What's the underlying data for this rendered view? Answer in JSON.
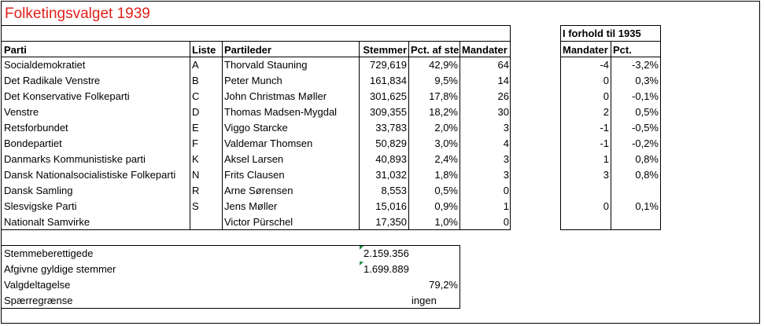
{
  "title": "Folketingsvalget 1939",
  "headers": {
    "parti": "Parti",
    "liste": "Liste",
    "partileder": "Partileder",
    "stemmer": "Stemmer",
    "pct": "Pct. af ste",
    "mandater": "Mandater"
  },
  "side_header": {
    "title": "I forhold til 1935",
    "mandater": "Mandater",
    "pct": "Pct."
  },
  "rows": [
    {
      "parti": "Socialdemokratiet",
      "liste": "A",
      "leder": "Thorvald Stauning",
      "stemmer": "729,619",
      "pct": "42,9%",
      "mandater": "64",
      "d_mandater": "-4",
      "d_pct": "-3,2%"
    },
    {
      "parti": "Det Radikale Venstre",
      "liste": "B",
      "leder": "Peter Munch",
      "stemmer": "161,834",
      "pct": "9,5%",
      "mandater": "14",
      "d_mandater": "0",
      "d_pct": "0,3%"
    },
    {
      "parti": "Det Konservative Folkeparti",
      "liste": "C",
      "leder": "John Christmas Møller",
      "stemmer": "301,625",
      "pct": "17,8%",
      "mandater": "26",
      "d_mandater": "0",
      "d_pct": "-0,1%"
    },
    {
      "parti": "Venstre",
      "liste": "D",
      "leder": "Thomas Madsen-Mygdal",
      "stemmer": "309,355",
      "pct": "18,2%",
      "mandater": "30",
      "d_mandater": "2",
      "d_pct": "0,5%"
    },
    {
      "parti": "Retsforbundet",
      "liste": "E",
      "leder": "Viggo Starcke",
      "stemmer": "33,783",
      "pct": "2,0%",
      "mandater": "3",
      "d_mandater": "-1",
      "d_pct": "-0,5%"
    },
    {
      "parti": "Bondepartiet",
      "liste": "F",
      "leder": "Valdemar Thomsen",
      "stemmer": "50,829",
      "pct": "3,0%",
      "mandater": "4",
      "d_mandater": "-1",
      "d_pct": "-0,2%"
    },
    {
      "parti": "Danmarks Kommunistiske parti",
      "liste": "K",
      "leder": "Aksel Larsen",
      "stemmer": "40,893",
      "pct": "2,4%",
      "mandater": "3",
      "d_mandater": "1",
      "d_pct": "0,8%"
    },
    {
      "parti": "Dansk Nationalsocialistiske Folkeparti",
      "liste": "N",
      "leder": "Frits Clausen",
      "stemmer": "31,032",
      "pct": "1,8%",
      "mandater": "3",
      "d_mandater": "3",
      "d_pct": "0,8%"
    },
    {
      "parti": "Dansk Samling",
      "liste": "R",
      "leder": "Arne Sørensen",
      "stemmer": "8,553",
      "pct": "0,5%",
      "mandater": "0",
      "d_mandater": "",
      "d_pct": ""
    },
    {
      "parti": "Slesvigske Parti",
      "liste": "S",
      "leder": "Jens Møller",
      "stemmer": "15,016",
      "pct": "0,9%",
      "mandater": "1",
      "d_mandater": "0",
      "d_pct": "0,1%"
    },
    {
      "parti": "Nationalt Samvirke",
      "liste": "",
      "leder": "Victor Pürschel",
      "stemmer": "17,350",
      "pct": "1,0%",
      "mandater": "0",
      "d_mandater": "",
      "d_pct": ""
    }
  ],
  "summary": [
    {
      "label": "Stemmeberettigede",
      "stemmer": "2.159.356",
      "pct": ""
    },
    {
      "label": "Afgivne gyldige stemmer",
      "stemmer": "1.699.889",
      "pct": ""
    },
    {
      "label": "Valgdeltagelse",
      "stemmer": "",
      "pct": "79,2%"
    },
    {
      "label": "Spærregrænse",
      "stemmer": "",
      "pct": "ingen"
    }
  ],
  "colors": {
    "title": "#e0201b",
    "error_indicator": "#1e8b3a"
  }
}
